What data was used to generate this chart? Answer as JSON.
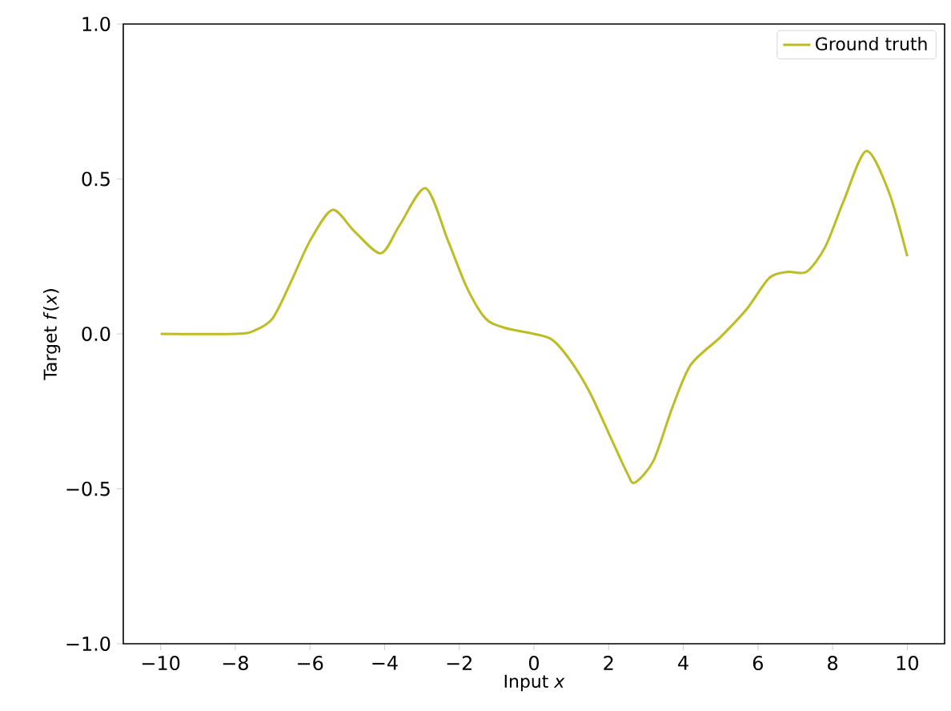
{
  "chart_data": {
    "type": "line",
    "xlabel": "Input *x*",
    "ylabel": "Target *f*(*x*)",
    "x": [
      -10,
      -8,
      -7.5,
      -7,
      -6.5,
      -6,
      -5.4,
      -4.8,
      -4.1,
      -3.6,
      -2.9,
      -2.3,
      -1.8,
      -1.3,
      -0.8,
      0,
      0.5,
      1,
      1.5,
      2,
      2.5,
      2.7,
      3.2,
      3.7,
      4.2,
      5,
      5.7,
      6.3,
      6.8,
      7.3,
      7.8,
      8.3,
      8.9,
      9.5,
      10
    ],
    "series": [
      {
        "name": "Ground truth",
        "color": "#bcbd22",
        "values": [
          0.0,
          0.0,
          0.01,
          0.05,
          0.17,
          0.3,
          0.4,
          0.33,
          0.26,
          0.35,
          0.47,
          0.3,
          0.15,
          0.05,
          0.02,
          0.0,
          -0.02,
          -0.09,
          -0.19,
          -0.32,
          -0.45,
          -0.48,
          -0.41,
          -0.24,
          -0.1,
          -0.01,
          0.08,
          0.18,
          0.2,
          0.2,
          0.28,
          0.43,
          0.59,
          0.46,
          0.25
        ]
      }
    ],
    "xlim": [
      -11,
      11
    ],
    "ylim": [
      -1.0,
      1.0
    ],
    "xticks": [
      {
        "value": -10,
        "label": "−10"
      },
      {
        "value": -8,
        "label": "−8"
      },
      {
        "value": -6,
        "label": "−6"
      },
      {
        "value": -4,
        "label": "−4"
      },
      {
        "value": -2,
        "label": "−2"
      },
      0,
      2,
      4,
      6,
      8,
      10
    ],
    "yticks": [
      {
        "value": -1.0,
        "label": "−1.0"
      },
      {
        "value": -0.5,
        "label": "−0.5"
      },
      {
        "value": 0.0,
        "label": "0.0"
      },
      {
        "value": 0.5,
        "label": "0.5"
      },
      {
        "value": 1.0,
        "label": "1.0"
      }
    ],
    "legend": "top right",
    "grid": false,
    "marker": "none",
    "line_style": "solid"
  }
}
